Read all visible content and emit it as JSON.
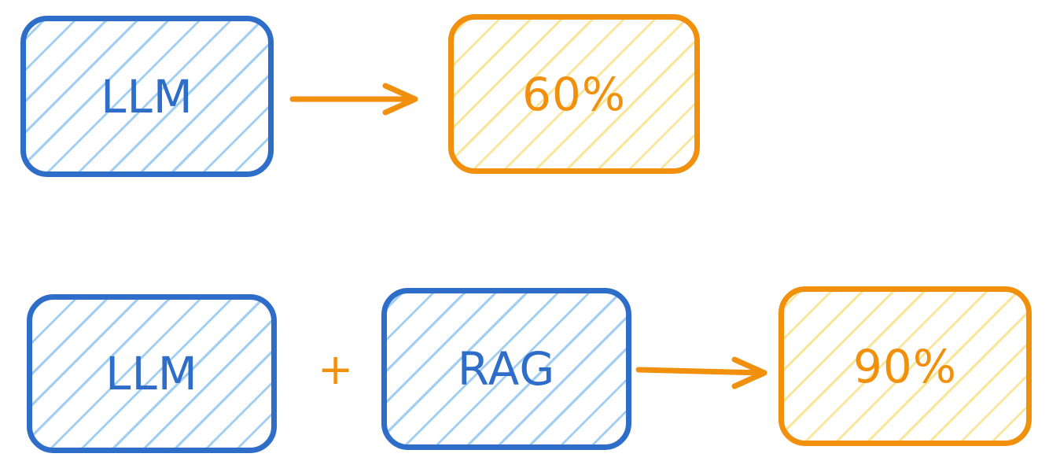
{
  "row1": {
    "input": {
      "label": "LLM"
    },
    "result": {
      "label": "60%"
    }
  },
  "row2": {
    "input_a": {
      "label": "LLM"
    },
    "operator": "+",
    "input_b": {
      "label": "RAG"
    },
    "result": {
      "label": "90%"
    }
  },
  "colors": {
    "blue": "#2f6ec8",
    "blue_hatch": "#82bef0",
    "orange": "#f0900d",
    "orange_hatch": "#f8de78"
  }
}
